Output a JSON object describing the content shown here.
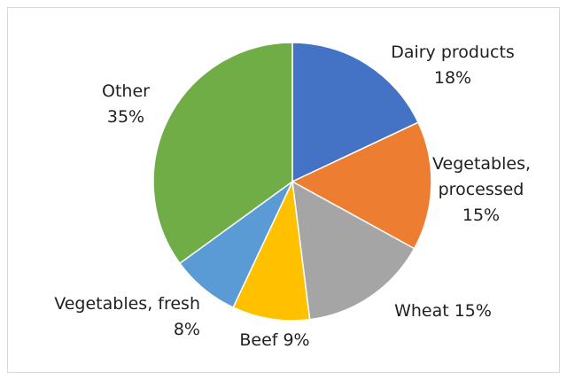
{
  "chart_data": {
    "type": "pie",
    "categories": [
      "Dairy products",
      "Vegetables, processed",
      "Wheat",
      "Beef",
      "Vegetables, fresh",
      "Other"
    ],
    "values": [
      18,
      15,
      15,
      9,
      8,
      35
    ],
    "value_labels": [
      "18%",
      "15%",
      "15%",
      "9%",
      "8%",
      "35%"
    ],
    "colors": [
      "#4472c4",
      "#ed7d31",
      "#a5a5a5",
      "#ffc000",
      "#5b9bd5",
      "#70ad47"
    ]
  }
}
